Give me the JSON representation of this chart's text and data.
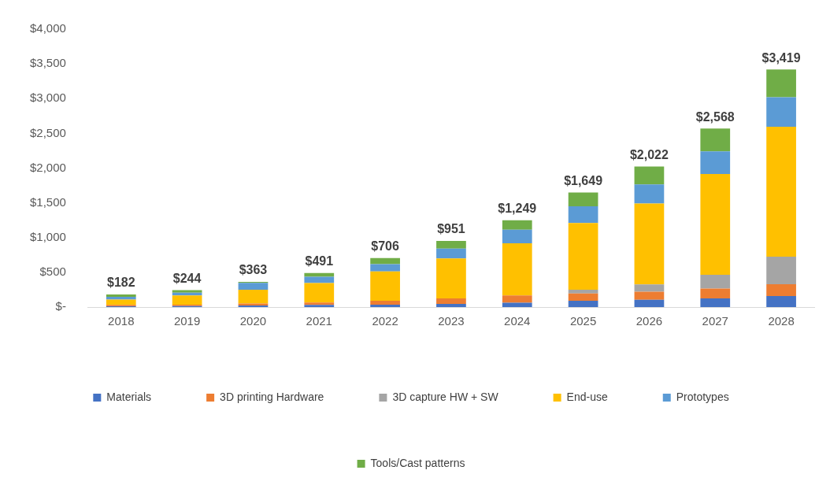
{
  "chart_data": {
    "type": "bar",
    "stacked": true,
    "categories": [
      "2018",
      "2019",
      "2020",
      "2021",
      "2022",
      "2023",
      "2024",
      "2025",
      "2026",
      "2027",
      "2028"
    ],
    "series": [
      {
        "name": "Materials",
        "color": "#4472c4",
        "values": [
          12,
          15,
          22,
          30,
          35,
          45,
          62,
          90,
          105,
          125,
          160
        ]
      },
      {
        "name": "3D printing Hardware",
        "color": "#ed7d31",
        "values": [
          18,
          20,
          30,
          35,
          55,
          80,
          105,
          105,
          115,
          140,
          170
        ]
      },
      {
        "name": "3D capture HW + SW",
        "color": "#a5a5a5",
        "values": [
          null,
          null,
          null,
          null,
          null,
          null,
          null,
          55,
          105,
          200,
          395
        ]
      },
      {
        "name": "End-use",
        "color": "#ffc000",
        "values": [
          77,
          131,
          197,
          282,
          423,
          575,
          752,
          960,
          1165,
          1450,
          1870
        ]
      },
      {
        "name": "Prototypes",
        "color": "#5b9bd5",
        "values": [
          40,
          40,
          100,
          90,
          105,
          140,
          195,
          240,
          275,
          325,
          425
        ]
      },
      {
        "name": "Tools/Cast patterns",
        "color": "#70ad47",
        "values": [
          35,
          38,
          14,
          54,
          88,
          111,
          135,
          199,
          257,
          328,
          399
        ]
      }
    ],
    "totals": [
      "$182",
      "$244",
      "$363",
      "$491",
      "$706",
      "$951",
      "$1,249",
      "$1,649",
      "$2,022",
      "$2,568",
      "$3,419"
    ],
    "ylim": [
      0,
      4000
    ],
    "yticks": [
      {
        "value": 0,
        "label": "$-"
      },
      {
        "value": 500,
        "label": "$500"
      },
      {
        "value": 1000,
        "label": "$1,000"
      },
      {
        "value": 1500,
        "label": "$1,500"
      },
      {
        "value": 2000,
        "label": "$2,000"
      },
      {
        "value": 2500,
        "label": "$2,500"
      },
      {
        "value": 3000,
        "label": "$3,000"
      },
      {
        "value": 3500,
        "label": "$3,500"
      },
      {
        "value": 4000,
        "label": "$4,000"
      }
    ],
    "grid": false,
    "legend": "bottom"
  }
}
